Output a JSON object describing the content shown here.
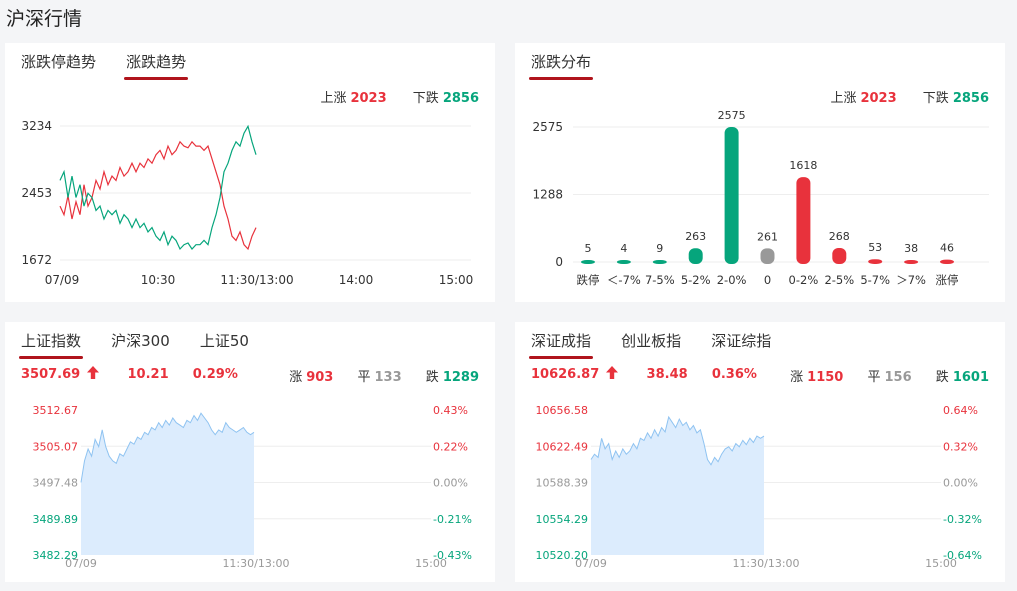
{
  "page_title": "沪深行情",
  "colors": {
    "up": "#e8323c",
    "down": "#06a57c",
    "flat": "#999999",
    "accent": "#b0141c",
    "area": "#dcecfd",
    "area_line": "#8fc3f1"
  },
  "trend_card": {
    "tabs": [
      {
        "label": "涨跌停趋势",
        "active": false
      },
      {
        "label": "涨跌趋势",
        "active": true
      }
    ],
    "up_label": "上涨",
    "up_count": "2023",
    "down_label": "下跌",
    "down_count": "2856"
  },
  "dist_card": {
    "tabs": [
      {
        "label": "涨跌分布",
        "active": true
      }
    ],
    "up_label": "上涨",
    "up_count": "2023",
    "down_label": "下跌",
    "down_count": "2856"
  },
  "sh_card": {
    "tabs": [
      {
        "label": "上证指数",
        "active": true
      },
      {
        "label": "沪深300",
        "active": false
      },
      {
        "label": "上证50",
        "active": false
      }
    ],
    "price": "3507.69",
    "arrow": "up-arrow-icon",
    "change": "10.21",
    "change_pct": "0.29%",
    "up_label": "涨",
    "up_count": "903",
    "flat_label": "平",
    "flat_count": "133",
    "down_label": "跌",
    "down_count": "1289"
  },
  "sz_card": {
    "tabs": [
      {
        "label": "深证成指",
        "active": true
      },
      {
        "label": "创业板指",
        "active": false
      },
      {
        "label": "深证综指",
        "active": false
      }
    ],
    "price": "10626.87",
    "arrow": "up-arrow-icon",
    "change": "38.48",
    "change_pct": "0.36%",
    "up_label": "涨",
    "up_count": "1150",
    "flat_label": "平",
    "flat_count": "156",
    "down_label": "跌",
    "down_count": "1601"
  },
  "chart_data": [
    {
      "id": "trend",
      "type": "line",
      "y_ticks": [
        "3234",
        "2453",
        "1672"
      ],
      "ylim": [
        1672,
        3234
      ],
      "x_ticks": [
        "07/09",
        "10:30",
        "11:30/13:00",
        "14:00",
        "15:00"
      ],
      "total_points": 240,
      "grid": true,
      "series": [
        {
          "color": "#e8323c",
          "values": [
            2300,
            2200,
            2420,
            2150,
            2350,
            2200,
            2550,
            2300,
            2400,
            2600,
            2500,
            2700,
            2550,
            2650,
            2600,
            2750,
            2650,
            2700,
            2800,
            2700,
            2800,
            2750,
            2850,
            2800,
            2900,
            2950,
            2850,
            3000,
            2900,
            2950,
            3050,
            3000,
            2980,
            3050,
            3000,
            3000,
            2950,
            3000,
            2850,
            2700,
            2550,
            2300,
            2150,
            1950,
            1900,
            2000,
            1850,
            1800,
            1950,
            2050
          ]
        },
        {
          "color": "#06a57c",
          "values": [
            2600,
            2700,
            2400,
            2650,
            2400,
            2550,
            2300,
            2450,
            2400,
            2250,
            2300,
            2150,
            2250,
            2200,
            2250,
            2100,
            2200,
            2150,
            2050,
            2150,
            2050,
            2100,
            2000,
            2050,
            1950,
            1900,
            2000,
            1850,
            1950,
            1900,
            1800,
            1850,
            1870,
            1800,
            1850,
            1850,
            1900,
            1850,
            2050,
            2200,
            2400,
            2700,
            2800,
            2950,
            3050,
            3000,
            3150,
            3230,
            3050,
            2900
          ]
        }
      ]
    },
    {
      "id": "distribution",
      "type": "bar",
      "y_ticks": [
        "2575",
        "1288",
        "0"
      ],
      "ylim": [
        0,
        2575
      ],
      "categories": [
        "跌停",
        "＜-7%",
        "7-5%",
        "5-2%",
        "2-0%",
        "0",
        "0-2%",
        "2-5%",
        "5-7%",
        "＞7%",
        "涨停"
      ],
      "values": [
        5,
        4,
        9,
        263,
        2575,
        261,
        1618,
        268,
        53,
        38,
        46
      ],
      "value_labels": [
        "5",
        "4",
        "9",
        "263",
        "2575",
        "261",
        "1618",
        "268",
        "53",
        "38",
        "46"
      ],
      "bar_colors": [
        "#06a57c",
        "#06a57c",
        "#06a57c",
        "#06a57c",
        "#06a57c",
        "#999999",
        "#e8323c",
        "#e8323c",
        "#e8323c",
        "#e8323c",
        "#e8323c"
      ]
    },
    {
      "id": "sh_index",
      "type": "area",
      "y_left_ticks": [
        "3512.67",
        "3505.07",
        "3497.48",
        "3489.89",
        "3482.29"
      ],
      "y_right_ticks": [
        "0.43%",
        "0.22%",
        "0.00%",
        "-0.21%",
        "-0.43%"
      ],
      "ylim": [
        3482.29,
        3512.67
      ],
      "x_ticks": [
        "07/09",
        "11:30/13:00",
        "15:00"
      ],
      "total_points": 240,
      "values": [
        3497.5,
        3502.0,
        3504.5,
        3503.0,
        3506.5,
        3505.0,
        3508.5,
        3505.0,
        3503.0,
        3502.0,
        3501.5,
        3503.5,
        3503.0,
        3504.5,
        3506.0,
        3505.5,
        3507.0,
        3506.5,
        3508.0,
        3507.5,
        3509.0,
        3508.5,
        3510.0,
        3509.0,
        3510.5,
        3509.5,
        3511.0,
        3510.0,
        3509.5,
        3509.0,
        3510.5,
        3510.0,
        3511.5,
        3510.5,
        3512.0,
        3511.0,
        3510.0,
        3508.5,
        3507.5,
        3508.5,
        3508.0,
        3510.0,
        3509.0,
        3508.5,
        3508.0,
        3508.5,
        3509.0,
        3508.0,
        3507.5,
        3508.0
      ]
    },
    {
      "id": "sz_index",
      "type": "area",
      "y_left_ticks": [
        "10656.58",
        "10622.49",
        "10588.39",
        "10554.29",
        "10520.20"
      ],
      "y_right_ticks": [
        "0.64%",
        "0.32%",
        "0.00%",
        "-0.32%",
        "-0.64%"
      ],
      "ylim": [
        10520.2,
        10656.58
      ],
      "x_ticks": [
        "07/09",
        "11:30/13:00",
        "15:00"
      ],
      "total_points": 240,
      "values": [
        10610,
        10615,
        10612,
        10630,
        10620,
        10625,
        10610,
        10618,
        10612,
        10620,
        10615,
        10618,
        10625,
        10620,
        10630,
        10628,
        10635,
        10630,
        10638,
        10632,
        10640,
        10636,
        10650,
        10645,
        10640,
        10648,
        10642,
        10645,
        10638,
        10642,
        10635,
        10638,
        10625,
        10610,
        10605,
        10612,
        10608,
        10615,
        10620,
        10622,
        10618,
        10625,
        10622,
        10628,
        10624,
        10630,
        10626,
        10632,
        10630,
        10632
      ]
    }
  ]
}
